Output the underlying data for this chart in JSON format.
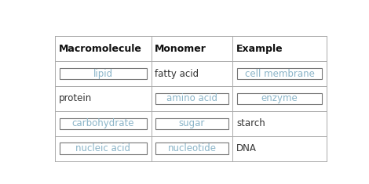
{
  "headers": [
    "Macromolecule",
    "Monomer",
    "Example"
  ],
  "rows": [
    {
      "macromolecule": {
        "text": "lipid",
        "boxed": true
      },
      "monomer": {
        "text": "fatty acid",
        "boxed": false
      },
      "example": {
        "text": "cell membrane",
        "boxed": true
      }
    },
    {
      "macromolecule": {
        "text": "protein",
        "boxed": false
      },
      "monomer": {
        "text": "amino acid",
        "boxed": true
      },
      "example": {
        "text": "enzyme",
        "boxed": true
      }
    },
    {
      "macromolecule": {
        "text": "carbohydrate",
        "boxed": true
      },
      "monomer": {
        "text": "sugar",
        "boxed": true
      },
      "example": {
        "text": "starch",
        "boxed": false
      }
    },
    {
      "macromolecule": {
        "text": "nucleic acid",
        "boxed": true
      },
      "monomer": {
        "text": "nucleotide",
        "boxed": true
      },
      "example": {
        "text": "DNA",
        "boxed": false
      }
    }
  ],
  "box_text_color": "#8ab4c8",
  "plain_text_color": "#333333",
  "header_color": "#111111",
  "bg_color": "#ffffff",
  "border_color": "#aaaaaa",
  "box_border_color": "#777777",
  "header_fontsize": 9,
  "cell_fontsize": 8.5,
  "col_starts_rel": [
    0.0,
    0.355,
    0.655
  ],
  "col_ends_rel": [
    0.355,
    0.655,
    1.0
  ]
}
